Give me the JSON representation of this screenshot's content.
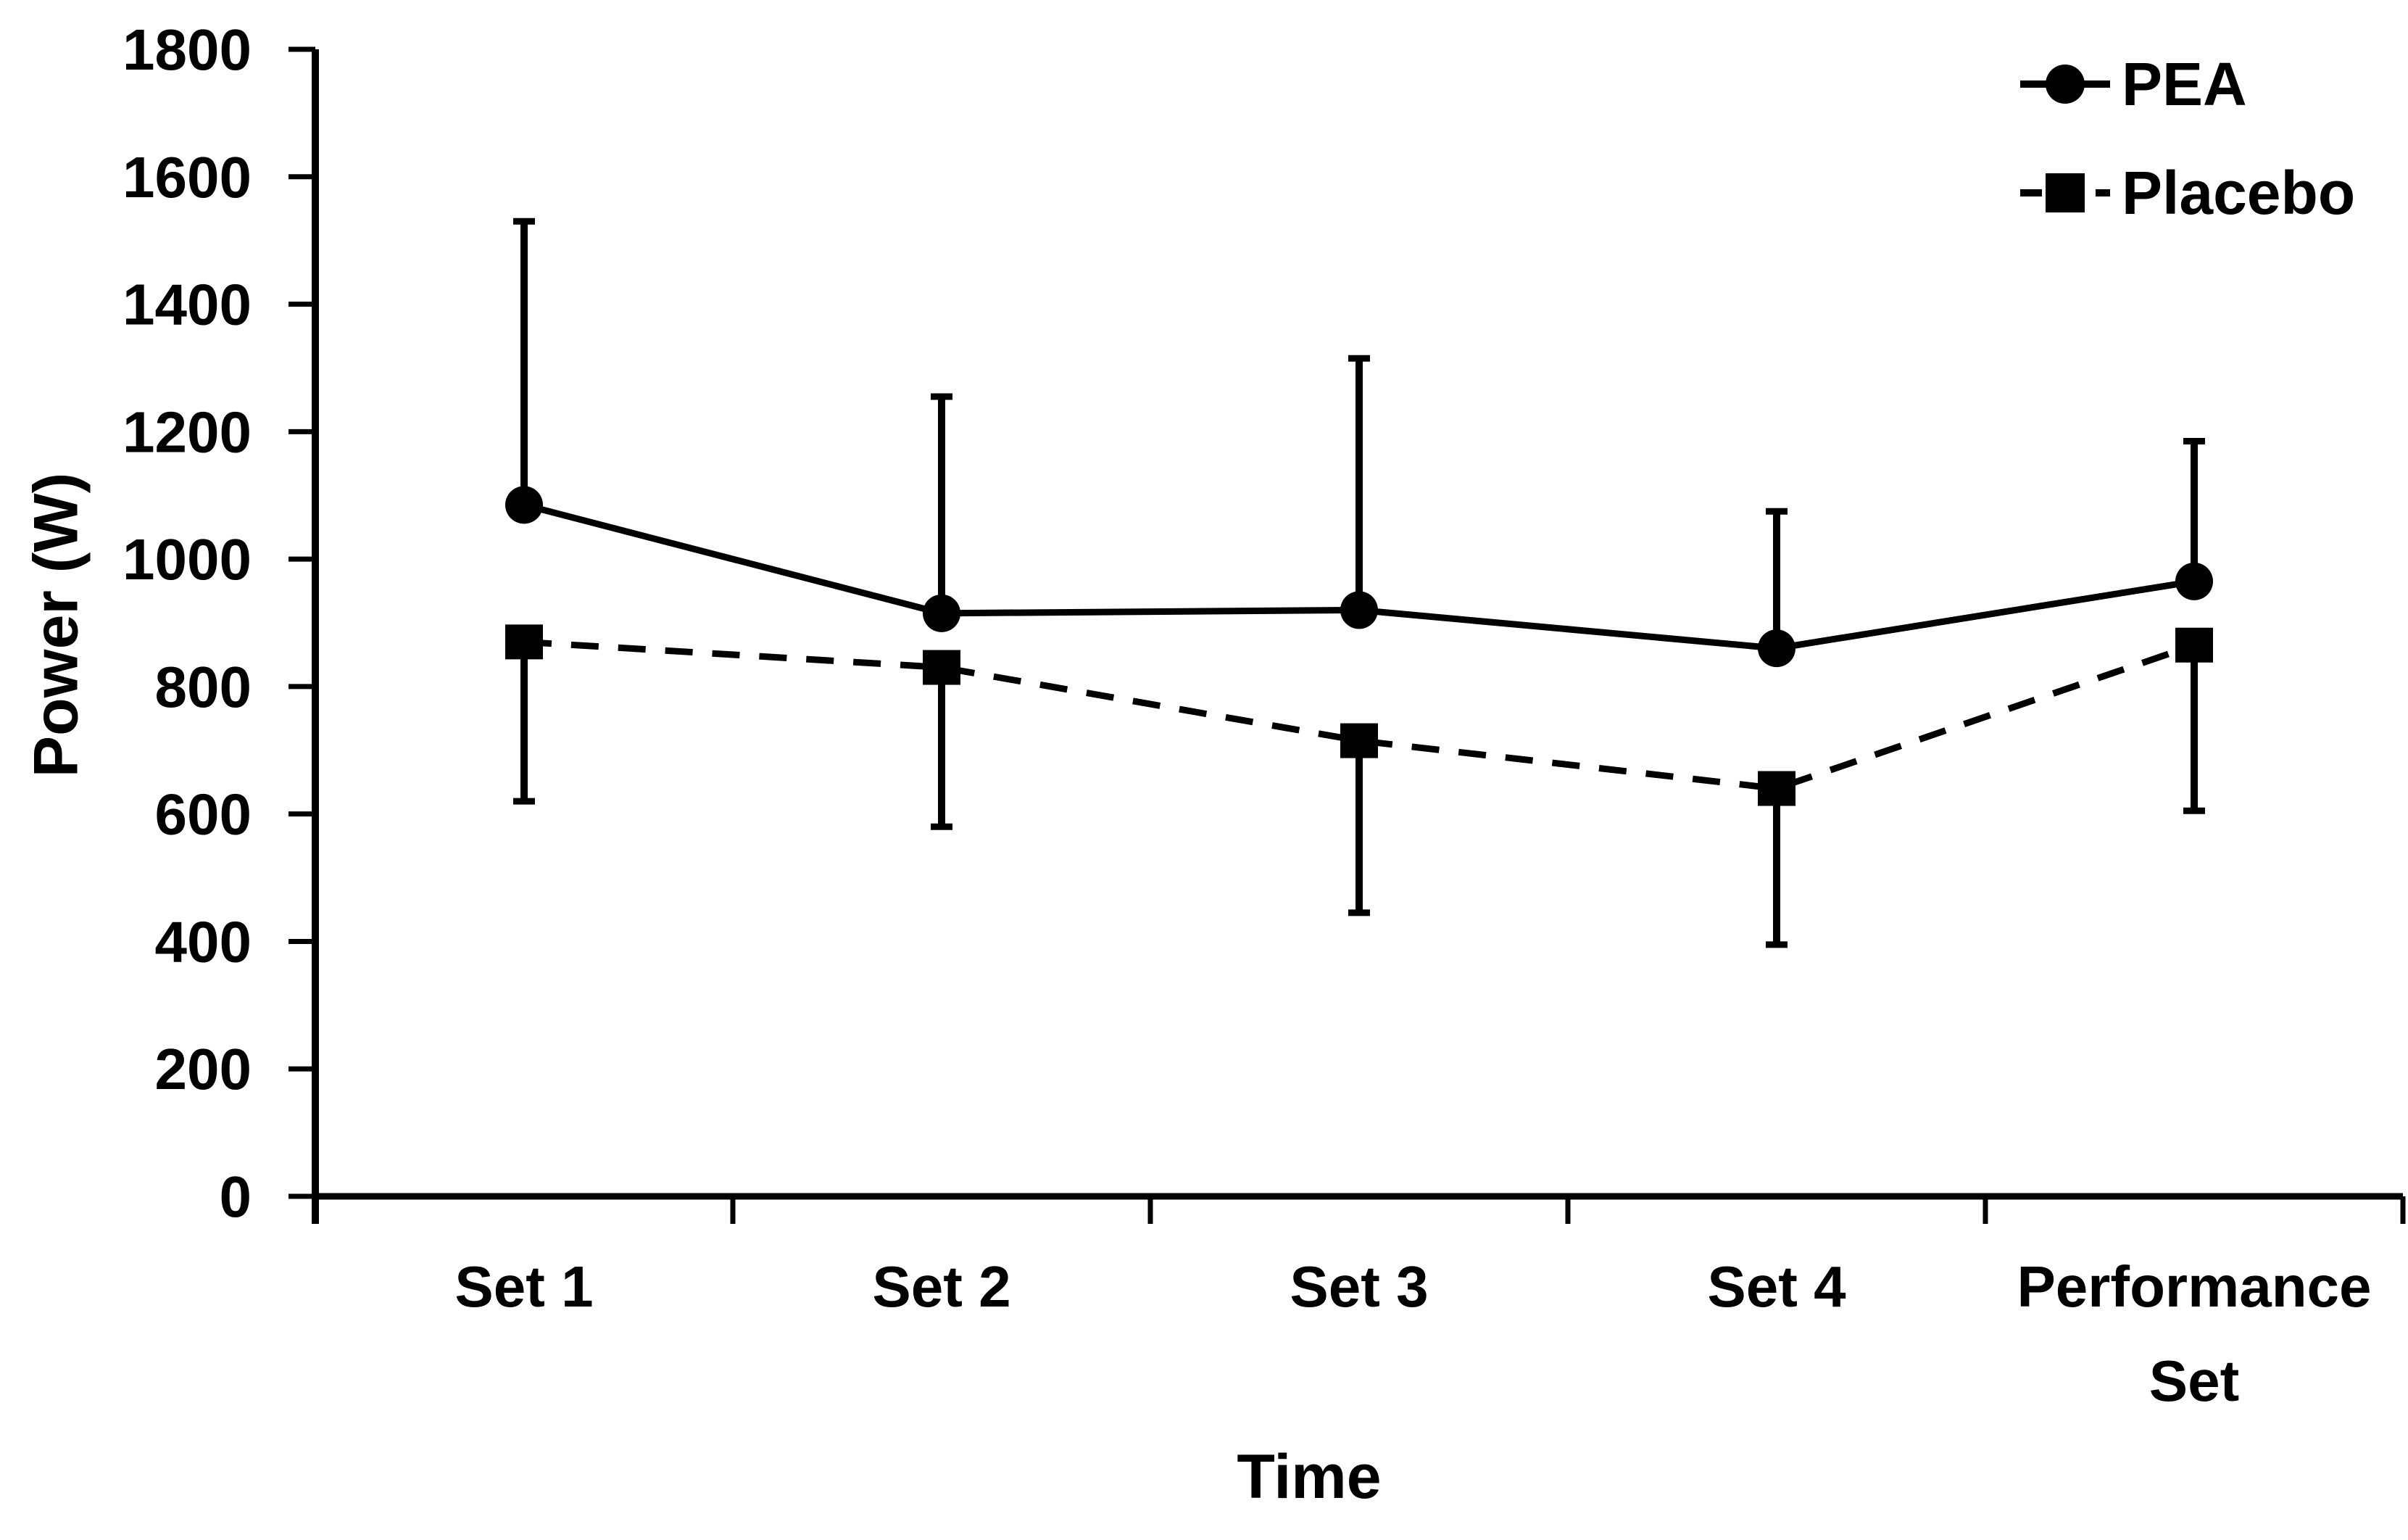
{
  "colors": {
    "foreground": "#000000",
    "background": "#ffffff"
  },
  "chart_data": {
    "type": "line",
    "title": "",
    "xlabel": "Time",
    "ylabel": "Power (W)",
    "categories": [
      "Set 1",
      "Set 2",
      "Set 3",
      "Set 4",
      "Performance Set"
    ],
    "x_tick_lines": [
      [
        "Set 1"
      ],
      [
        "Set 2"
      ],
      [
        "Set 3"
      ],
      [
        "Set 4"
      ],
      [
        "Performance",
        "Set"
      ]
    ],
    "ylim": [
      0,
      1800
    ],
    "ytick_values": [
      0,
      200,
      400,
      600,
      800,
      1000,
      1200,
      1400,
      1600,
      1800
    ],
    "grid": false,
    "legend_position": "top-right",
    "series": [
      {
        "name": "PEA",
        "marker": "circle",
        "line_style": "solid",
        "values": [
          1085,
          915,
          920,
          860,
          965
        ],
        "error_plus": [
          445,
          340,
          395,
          215,
          220
        ],
        "error_minus": [
          0,
          0,
          0,
          0,
          0
        ]
      },
      {
        "name": "Placebo",
        "marker": "square",
        "line_style": "dashed",
        "values": [
          870,
          830,
          715,
          640,
          865
        ],
        "error_plus": [
          0,
          0,
          0,
          0,
          0
        ],
        "error_minus": [
          250,
          250,
          270,
          245,
          260
        ]
      }
    ]
  }
}
